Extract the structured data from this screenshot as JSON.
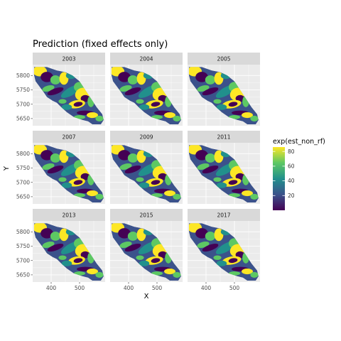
{
  "chart_data": {
    "type": "heatmap",
    "title": "Prediction (fixed effects only)",
    "xlabel": "X",
    "ylabel": "Y",
    "facets": [
      "2003",
      "2004",
      "2005",
      "2007",
      "2009",
      "2011",
      "2013",
      "2015",
      "2017"
    ],
    "facet_layout": {
      "rows": 3,
      "cols": 3
    },
    "xlim": [
      335,
      590
    ],
    "ylim": [
      5625,
      5838
    ],
    "x_ticks": [
      400,
      500
    ],
    "y_ticks": [
      5650,
      5700,
      5750,
      5800
    ],
    "legend": {
      "title": "exp(est_non_rf)",
      "placement": "right",
      "breaks": [
        20,
        40,
        60,
        80
      ],
      "range": [
        0,
        86
      ],
      "colormap": "viridis",
      "colors": [
        "#440154",
        "#3b528b",
        "#21908c",
        "#5dc863",
        "#fde725"
      ]
    },
    "grid": true,
    "panel_background": "#ebebeb",
    "strip_background": "#d9d9d9"
  }
}
